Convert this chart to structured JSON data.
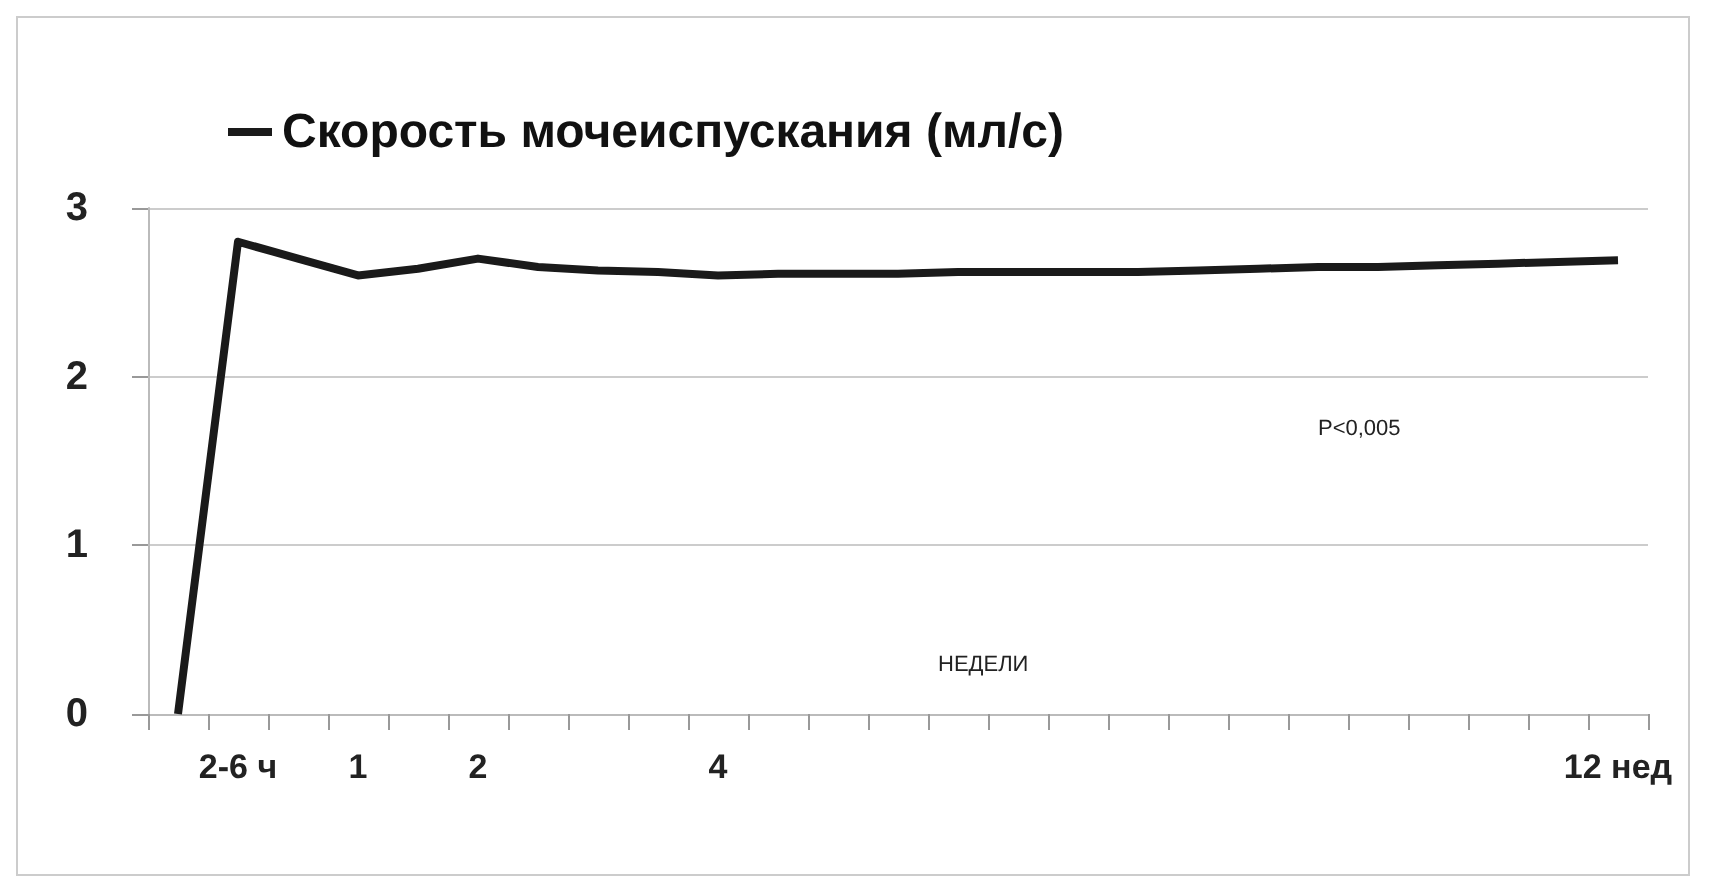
{
  "chart_data": {
    "type": "line",
    "categories": [
      null,
      "2-6 ч",
      null,
      "1",
      null,
      "2",
      null,
      null,
      null,
      "4",
      null,
      null,
      null,
      null,
      null,
      null,
      null,
      null,
      null,
      null,
      null,
      null,
      null,
      null,
      "12 нед"
    ],
    "series": [
      {
        "name": "Скорость мочеиспускания (мл/с)",
        "color": "#1a1a1a",
        "values": [
          0,
          2.8,
          2.7,
          2.6,
          2.64,
          2.7,
          2.65,
          2.63,
          2.62,
          2.6,
          2.61,
          2.61,
          2.61,
          2.62,
          2.62,
          2.62,
          2.62,
          2.63,
          2.64,
          2.65,
          2.65,
          2.66,
          2.67,
          2.68,
          2.69
        ]
      }
    ],
    "ylim": [
      0,
      3
    ],
    "yticks": [
      0,
      1,
      2,
      3
    ],
    "grid": "y",
    "legend": "top left",
    "annotations": [
      "P<0,005",
      "НЕДЕЛИ"
    ]
  }
}
